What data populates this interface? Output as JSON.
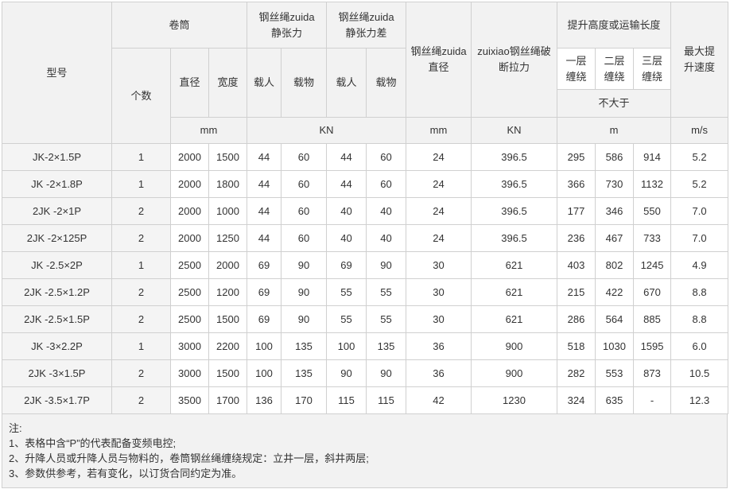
{
  "header": {
    "model": "型号",
    "drum": "卷筒",
    "rope_tension": "钢丝绳zuida静张力",
    "rope_tension_diff": "钢丝绳zuida静张力差",
    "rope_diameter": "钢丝绳zuida直径",
    "breaking_force": "zuixiao钢丝绳破断拉力",
    "lift_height": "提升高度或运输长度",
    "max_speed": "最大提升速度",
    "count": "个数",
    "diameter": "直径",
    "width": "宽度",
    "tension_people": "载人",
    "tension_goods": "载物",
    "diff_people": "载人",
    "diff_goods": "载物",
    "layer1": "一层缠绕",
    "layer2": "二层缠绕",
    "layer3": "三层缠绕",
    "not_exceed": "不大于",
    "unit_drum": "mm",
    "unit_tension": "KN",
    "unit_diameter": "mm",
    "unit_force": "KN",
    "unit_height": "m",
    "unit_speed": "m/s"
  },
  "table": {
    "rows": [
      [
        "JK-2×1.5P",
        "1",
        "2000",
        "1500",
        "44",
        "60",
        "44",
        "60",
        "24",
        "396.5",
        "295",
        "586",
        "914",
        "5.2"
      ],
      [
        "JK -2×1.8P",
        "1",
        "2000",
        "1800",
        "44",
        "60",
        "44",
        "60",
        "24",
        "396.5",
        "366",
        "730",
        "1132",
        "5.2"
      ],
      [
        "2JK -2×1P",
        "2",
        "2000",
        "1000",
        "44",
        "60",
        "40",
        "40",
        "24",
        "396.5",
        "177",
        "346",
        "550",
        "7.0"
      ],
      [
        "2JK -2×125P",
        "2",
        "2000",
        "1250",
        "44",
        "60",
        "40",
        "40",
        "24",
        "396.5",
        "236",
        "467",
        "733",
        "7.0"
      ],
      [
        "JK -2.5×2P",
        "1",
        "2500",
        "2000",
        "69",
        "90",
        "69",
        "90",
        "30",
        "621",
        "403",
        "802",
        "1245",
        "4.9"
      ],
      [
        "2JK -2.5×1.2P",
        "2",
        "2500",
        "1200",
        "69",
        "90",
        "55",
        "55",
        "30",
        "621",
        "215",
        "422",
        "670",
        "8.8"
      ],
      [
        "2JK -2.5×1.5P",
        "2",
        "2500",
        "1500",
        "69",
        "90",
        "55",
        "55",
        "30",
        "621",
        "286",
        "564",
        "885",
        "8.8"
      ],
      [
        "JK -3×2.2P",
        "1",
        "3000",
        "2200",
        "100",
        "135",
        "100",
        "135",
        "36",
        "900",
        "518",
        "1030",
        "1595",
        "6.0"
      ],
      [
        "2JK -3×1.5P",
        "2",
        "3000",
        "1500",
        "100",
        "135",
        "90",
        "90",
        "36",
        "900",
        "282",
        "553",
        "873",
        "10.5"
      ],
      [
        "2JK -3.5×1.7P",
        "2",
        "3500",
        "1700",
        "136",
        "170",
        "115",
        "115",
        "42",
        "1230",
        "324",
        "635",
        "-",
        "12.3"
      ]
    ]
  },
  "notes": [
    "注:",
    "1、表格中含“P”的代表配备变频电控;",
    "2、升降人员或升降人员与物料的，卷筒钢丝绳缠绕规定：立井一层，斜井两层;",
    "3、参数供参考，若有变化，以订货合同约定为准。"
  ]
}
